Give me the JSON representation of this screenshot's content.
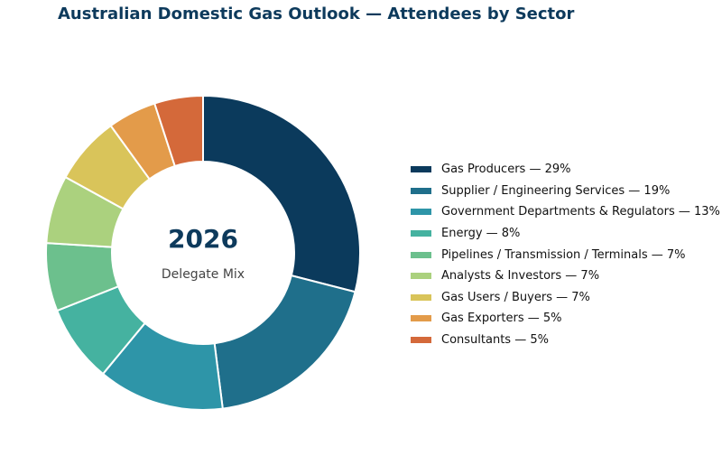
{
  "chart_data": {
    "type": "pie",
    "title": "Australian Domestic Gas Outlook — Attendees by Sector",
    "center_label": "2026",
    "center_sublabel": "Delegate Mix",
    "legend_position": "right",
    "slices": [
      {
        "label": "Gas Producers",
        "value": 29,
        "display": "Gas Producers  —  29%",
        "color": "#0b3a5c"
      },
      {
        "label": "Supplier / Engineering Services",
        "value": 19,
        "display": "Supplier / Engineering Services  —  19%",
        "color": "#1f6f8b"
      },
      {
        "label": "Government Departments & Regulators",
        "value": 13,
        "display": "Government Departments & Regulators  —  13%",
        "color": "#2e95a8"
      },
      {
        "label": "Energy",
        "value": 8,
        "display": "Energy  —  8%",
        "color": "#45b2a0"
      },
      {
        "label": "Pipelines / Transmission / Terminals",
        "value": 7,
        "display": "Pipelines / Transmission / Terminals  —  7%",
        "color": "#6cc08d"
      },
      {
        "label": "Analysts & Investors",
        "value": 7,
        "display": "Analysts & Investors  —  7%",
        "color": "#abd17e"
      },
      {
        "label": "Gas Users / Buyers",
        "value": 7,
        "display": "Gas Users / Buyers  —  7%",
        "color": "#d9c45a"
      },
      {
        "label": "Gas Exporters",
        "value": 5,
        "display": "Gas Exporters  —  5%",
        "color": "#e39b4a"
      },
      {
        "label": "Consultants",
        "value": 5,
        "display": "Consultants  —  5%",
        "color": "#d4693a"
      }
    ]
  }
}
